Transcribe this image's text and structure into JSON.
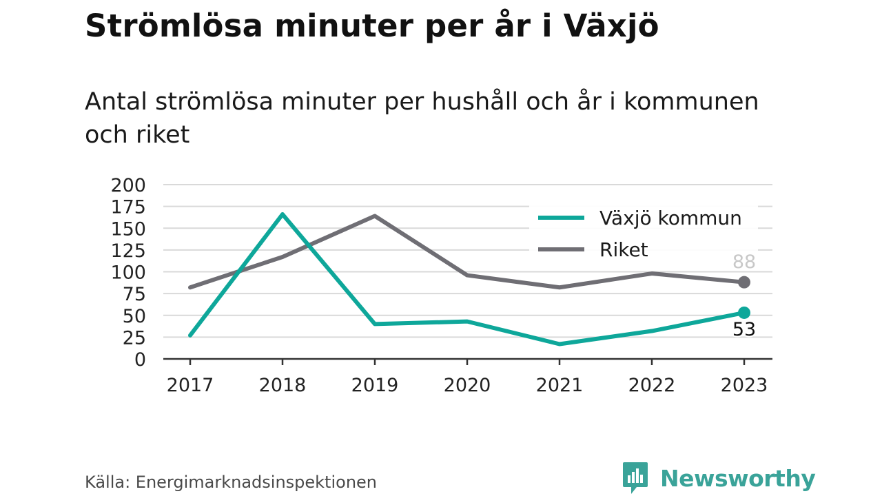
{
  "header": {
    "title": "Strömlösa minuter per år i Växjö",
    "subtitle": "Antal strömlösa minuter per hushåll och år i kommunen och riket"
  },
  "footer": {
    "source": "Källa: Energimarknadsinspektionen",
    "brand": "Newsworthy"
  },
  "colors": {
    "vaxjo": "#0ea79a",
    "riket": "#6f6e74",
    "grid": "#d9d9d9",
    "axis": "#333333",
    "brand": "#3aa399"
  },
  "chart_data": {
    "type": "line",
    "x": [
      "2017",
      "2018",
      "2019",
      "2020",
      "2021",
      "2022",
      "2023"
    ],
    "series": [
      {
        "name": "Växjö kommun",
        "values": [
          27,
          166,
          40,
          43,
          17,
          32,
          53
        ]
      },
      {
        "name": "Riket",
        "values": [
          82,
          117,
          164,
          96,
          82,
          98,
          88
        ]
      }
    ],
    "y_ticks": [
      "0",
      "25",
      "50",
      "75",
      "100",
      "125",
      "150",
      "175",
      "200"
    ],
    "ylim": [
      0,
      200
    ],
    "end_labels": [
      "53",
      "88"
    ],
    "grid": true,
    "legend": "top-right"
  }
}
